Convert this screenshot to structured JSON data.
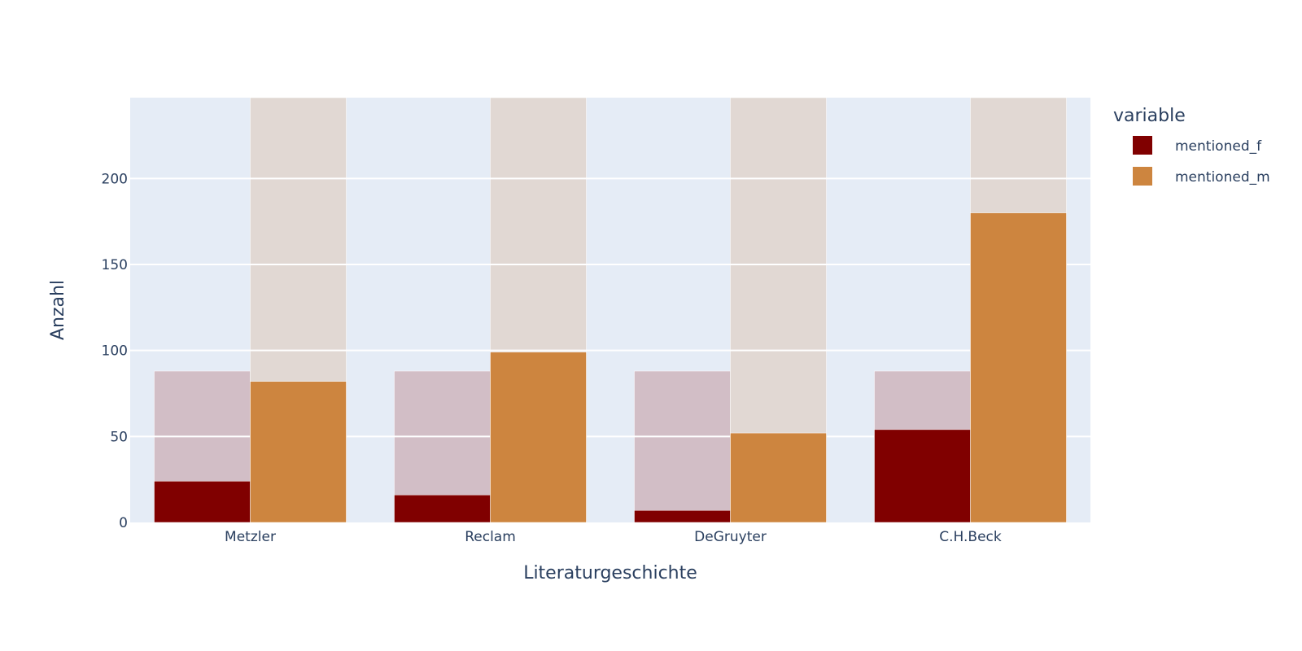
{
  "chart_data": {
    "type": "bar",
    "categories": [
      "Metzler",
      "Reclam",
      "DeGruyter",
      "C.H.Beck"
    ],
    "xlabel": "Literaturgeschichte",
    "ylabel": "Anzahl",
    "ylim": [
      0,
      247
    ],
    "yticks": [
      0,
      50,
      100,
      150,
      200
    ],
    "grid": true,
    "legend": {
      "title": "variable",
      "placement": "right"
    },
    "series": [
      {
        "name": "mentioned_f",
        "color": "#800000",
        "background_color": "#d2bec6",
        "values": [
          24,
          16,
          7,
          54
        ],
        "background_values": [
          88,
          88,
          88,
          88
        ]
      },
      {
        "name": "mentioned_m",
        "color": "#cd853f",
        "background_color": "#e1d8d3",
        "values": [
          82,
          99,
          52,
          180
        ],
        "background_values": [
          247,
          247,
          247,
          247
        ]
      }
    ]
  }
}
